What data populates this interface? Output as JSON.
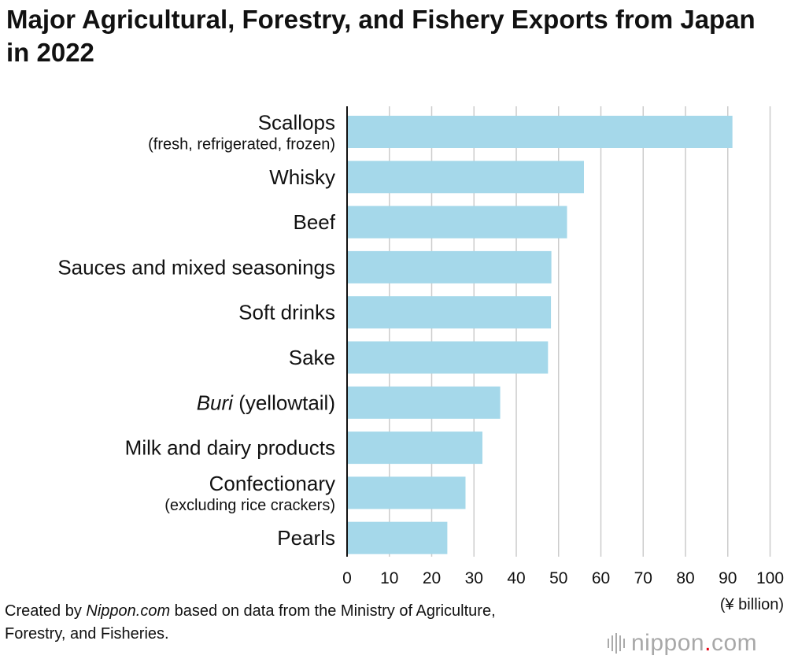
{
  "title": "Major Agricultural, Forestry, and Fishery Exports from Japan in 2022",
  "chart_data": {
    "type": "bar",
    "orientation": "horizontal",
    "title": "Major Agricultural, Forestry, and Fishery Exports from Japan in 2022",
    "categories": [
      {
        "label": "Scallops",
        "sublabel": "(fresh, refrigerated, frozen)"
      },
      {
        "label": "Whisky"
      },
      {
        "label": "Beef"
      },
      {
        "label": "Sauces and mixed seasonings"
      },
      {
        "label": "Soft drinks"
      },
      {
        "label": "Sake"
      },
      {
        "label": "Buri",
        "label_suffix": " (yellowtail)",
        "italic_part": "Buri"
      },
      {
        "label": "Milk and dairy products"
      },
      {
        "label": "Confectionary",
        "sublabel": "(excluding rice crackers)"
      },
      {
        "label": "Pearls"
      }
    ],
    "values": [
      91.1,
      56.0,
      52.0,
      48.3,
      48.2,
      47.5,
      36.2,
      32.0,
      28.0,
      23.7
    ],
    "xlim": [
      0,
      100
    ],
    "xticks": [
      0,
      10,
      20,
      30,
      40,
      50,
      60,
      70,
      80,
      90,
      100
    ],
    "unit_label": "(¥ billion)",
    "grid": "vertical",
    "legend": "none",
    "bar_color": "#a5d8ea",
    "grid_color": "#cccccc",
    "axis_color": "#111111"
  },
  "source": {
    "prefix": "Created by ",
    "site": "Nippon.com",
    "suffix": " based on data from the Ministry of Agriculture, Forestry, and Fisheries."
  },
  "logo": {
    "name": "nippon",
    "dot": ".",
    "tld": "com",
    "dot_color": "#e60012"
  }
}
